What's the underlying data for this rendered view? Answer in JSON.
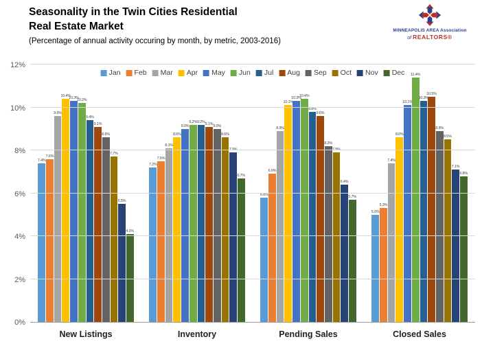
{
  "header": {
    "title_line1": "Seasonality in the Twin Cities Residential",
    "title_line2": "Real Estate Market",
    "subtitle": "(Percentage of annual activity occuring by month, by metric, 2003-2016)"
  },
  "logo": {
    "line1": "MINNEAPOLIS AREA Association",
    "of": "of",
    "realtors": "REALTORS®",
    "blue": "#24408e",
    "red": "#b6322c"
  },
  "chart_data": {
    "type": "bar",
    "title": "Seasonality in the Twin Cities Residential Real Estate Market",
    "subtitle": "(Percentage of annual activity occuring by month, by metric, 2003-2016)",
    "categories": [
      "New Listings",
      "Inventory",
      "Pending Sales",
      "Closed Sales"
    ],
    "ylim": [
      0,
      12
    ],
    "yticks": [
      0,
      2,
      4,
      6,
      8,
      10,
      12
    ],
    "ytick_suffix": "%",
    "grid": true,
    "legend_position": "top",
    "value_label_format": "0.0%",
    "series": [
      {
        "name": "Jan",
        "color": "#5B9BD5",
        "values": [
          7.4,
          7.2,
          5.8,
          5.0
        ]
      },
      {
        "name": "Feb",
        "color": "#ED7D31",
        "values": [
          7.6,
          7.5,
          6.9,
          5.3
        ]
      },
      {
        "name": "Mar",
        "color": "#A5A5A5",
        "values": [
          9.6,
          8.1,
          8.9,
          7.4
        ]
      },
      {
        "name": "Apr",
        "color": "#FFC000",
        "values": [
          10.4,
          8.6,
          10.1,
          8.6
        ]
      },
      {
        "name": "May",
        "color": "#4472C4",
        "values": [
          10.3,
          9.0,
          10.3,
          10.1
        ]
      },
      {
        "name": "Jun",
        "color": "#70AD47",
        "values": [
          10.2,
          9.2,
          10.4,
          11.4
        ]
      },
      {
        "name": "Jul",
        "color": "#255E91",
        "values": [
          9.4,
          9.2,
          9.8,
          10.3
        ]
      },
      {
        "name": "Aug",
        "color": "#9E480E",
        "values": [
          9.1,
          9.1,
          9.6,
          10.5
        ]
      },
      {
        "name": "Sep",
        "color": "#636363",
        "values": [
          8.6,
          9.0,
          8.2,
          8.9
        ]
      },
      {
        "name": "Oct",
        "color": "#997300",
        "values": [
          7.7,
          8.6,
          7.9,
          8.5
        ]
      },
      {
        "name": "Nov",
        "color": "#264478",
        "values": [
          5.5,
          7.9,
          6.4,
          7.1
        ]
      },
      {
        "name": "Dec",
        "color": "#43682B",
        "values": [
          4.1,
          6.7,
          5.7,
          6.8
        ]
      }
    ]
  }
}
